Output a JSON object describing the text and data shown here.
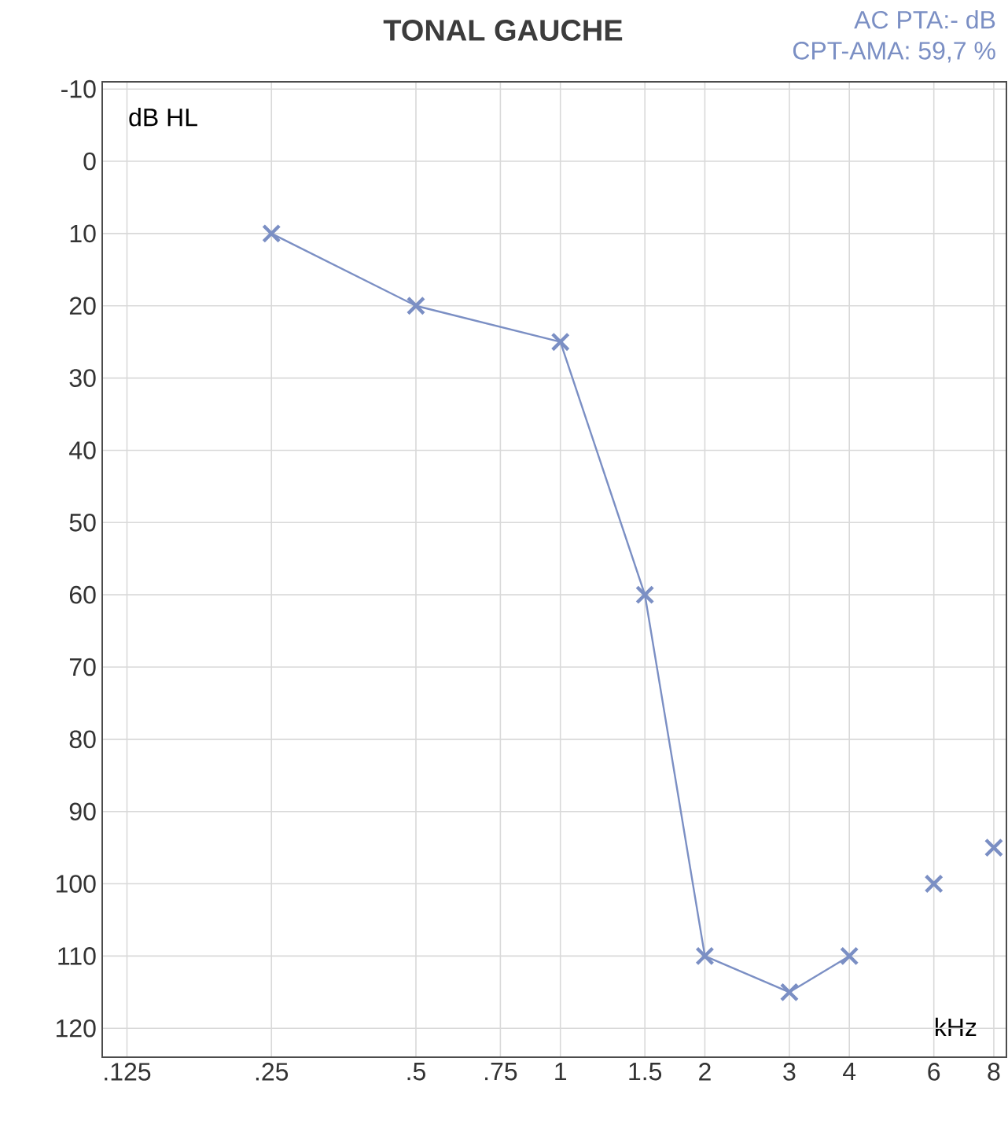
{
  "chart_data": {
    "type": "line",
    "title": "TONAL GAUCHE",
    "annotations": [
      "AC PTA:- dB",
      "CPT-AMA: 59,7 %",
      "dB HL",
      "kHz"
    ],
    "log": "x",
    "grid": true,
    "marker": "cross",
    "line_style": "solid",
    "xlim": [
      0.111,
      8.5
    ],
    "ylim": [
      124,
      -11
    ],
    "xticks": [
      {
        "value": 0.125,
        "label": ".125"
      },
      {
        "value": 0.25,
        "label": ".25"
      },
      {
        "value": 0.5,
        "label": ".5"
      },
      {
        "value": 0.75,
        "label": ".75"
      },
      1,
      1.5,
      2,
      3,
      4,
      6,
      8
    ],
    "yticks": [
      -10,
      0,
      10,
      20,
      30,
      40,
      50,
      60,
      70,
      80,
      90,
      100,
      110,
      120
    ],
    "series": [
      {
        "color": "#7b8fc4",
        "x": [
          0.25,
          0.5,
          1,
          1.5,
          2,
          3,
          4
        ],
        "values": [
          10,
          20,
          25,
          60,
          110,
          115,
          110
        ]
      },
      {
        "type": "scatter",
        "color": "#7b8fc4",
        "x": [
          6,
          8
        ],
        "values": [
          100,
          95
        ]
      }
    ]
  }
}
